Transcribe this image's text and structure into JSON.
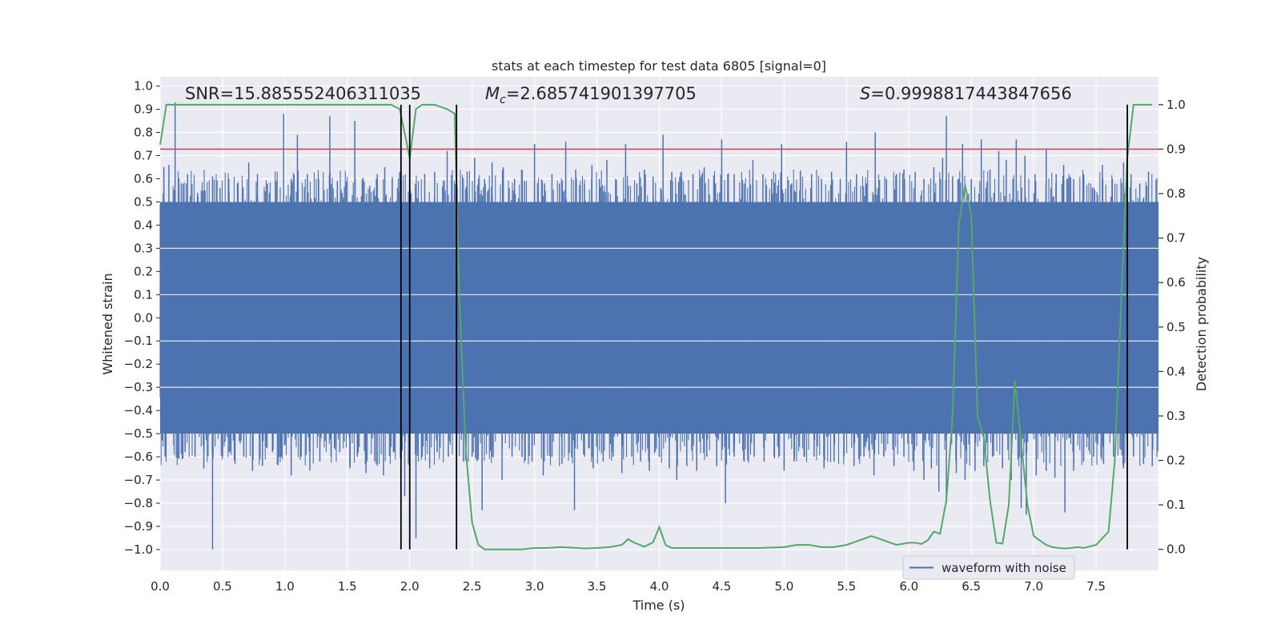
{
  "chart_data": {
    "type": "line",
    "title": "stats at each timestep for test data 6805 [signal=0]",
    "xlabel": "Time (s)",
    "ylabel_left": "Whitened strain",
    "ylabel_right": "Detection probability",
    "xlim": [
      0.0,
      8.0
    ],
    "ylim_left": [
      -1.09,
      1.04
    ],
    "ylim_right": [
      -0.0473,
      1.0627
    ],
    "x_ticks": [
      "0.0",
      "0.5",
      "1.0",
      "1.5",
      "2.0",
      "2.5",
      "3.0",
      "3.5",
      "4.0",
      "4.5",
      "5.0",
      "5.5",
      "6.0",
      "6.5",
      "7.0",
      "7.5"
    ],
    "y_ticks_left": [
      "1.0",
      "0.9",
      "0.8",
      "0.7",
      "0.6",
      "0.5",
      "0.4",
      "0.3",
      "0.2",
      "0.1",
      "0.0",
      "−0.1",
      "−0.2",
      "−0.3",
      "−0.4",
      "−0.5",
      "−0.6",
      "−0.7",
      "−0.8",
      "−0.9",
      "−1.0"
    ],
    "y_ticks_right": [
      "1.0",
      "0.9",
      "0.8",
      "0.7",
      "0.6",
      "0.5",
      "0.4",
      "0.3",
      "0.2",
      "0.1",
      "0.0"
    ],
    "grid": true,
    "annotations": {
      "snr": "SNR=15.885552406311035",
      "mc_symbol": "M",
      "mc_sub": "c",
      "mc_value": "=2.685741901397705",
      "s_symbol": "S",
      "s_value": "=0.9998817443847656"
    },
    "legend": {
      "label": "waveform with noise",
      "location": "lower-right"
    },
    "threshold_right": 0.9,
    "vertical_lines_x": [
      1.93,
      2.0,
      2.375,
      7.75
    ],
    "series": [
      {
        "name": "waveform with noise",
        "axis": "left",
        "color": "#4c72b0",
        "band": [
          -0.5,
          0.5
        ],
        "spikes_up": [
          [
            0.03,
            0.65
          ],
          [
            0.07,
            0.66
          ],
          [
            0.12,
            0.93
          ],
          [
            0.17,
            0.58
          ],
          [
            0.22,
            0.62
          ],
          [
            0.3,
            0.54
          ],
          [
            0.36,
            0.55
          ],
          [
            0.42,
            0.61
          ],
          [
            0.48,
            0.56
          ],
          [
            0.55,
            0.6
          ],
          [
            0.62,
            0.58
          ],
          [
            0.71,
            0.67
          ],
          [
            0.78,
            0.62
          ],
          [
            0.86,
            0.58
          ],
          [
            0.93,
            0.59
          ],
          [
            0.99,
            0.88
          ],
          [
            1.05,
            0.6
          ],
          [
            1.1,
            0.79
          ],
          [
            1.18,
            0.62
          ],
          [
            1.27,
            0.6
          ],
          [
            1.36,
            0.87
          ],
          [
            1.42,
            0.59
          ],
          [
            1.47,
            0.52
          ],
          [
            1.56,
            0.85
          ],
          [
            1.62,
            0.6
          ],
          [
            1.68,
            0.57
          ],
          [
            1.74,
            0.62
          ],
          [
            1.8,
            0.65
          ],
          [
            1.86,
            0.6
          ],
          [
            1.92,
            0.63
          ],
          [
            2.05,
            0.56
          ],
          [
            2.12,
            0.62
          ],
          [
            2.2,
            0.63
          ],
          [
            2.3,
            0.72
          ],
          [
            2.46,
            0.63
          ],
          [
            2.52,
            0.69
          ],
          [
            2.6,
            0.6
          ],
          [
            2.66,
            0.67
          ],
          [
            2.75,
            0.65
          ],
          [
            2.84,
            0.6
          ],
          [
            2.92,
            0.59
          ],
          [
            3.0,
            0.75
          ],
          [
            3.08,
            0.58
          ],
          [
            3.14,
            0.62
          ],
          [
            3.2,
            0.58
          ],
          [
            3.25,
            0.76
          ],
          [
            3.33,
            0.64
          ],
          [
            3.4,
            0.58
          ],
          [
            3.46,
            0.66
          ],
          [
            3.52,
            0.6
          ],
          [
            3.58,
            0.68
          ],
          [
            3.65,
            0.6
          ],
          [
            3.73,
            0.75
          ],
          [
            3.82,
            0.58
          ],
          [
            3.88,
            0.64
          ],
          [
            3.95,
            0.61
          ],
          [
            4.03,
            0.79
          ],
          [
            4.1,
            0.63
          ],
          [
            4.18,
            0.6
          ],
          [
            4.27,
            0.62
          ],
          [
            4.36,
            0.65
          ],
          [
            4.45,
            0.58
          ],
          [
            4.5,
            0.77
          ],
          [
            4.6,
            0.62
          ],
          [
            4.68,
            0.58
          ],
          [
            4.75,
            0.68
          ],
          [
            4.83,
            0.62
          ],
          [
            4.9,
            0.6
          ],
          [
            4.98,
            0.75
          ],
          [
            5.06,
            0.58
          ],
          [
            5.13,
            0.63
          ],
          [
            5.22,
            0.62
          ],
          [
            5.3,
            0.6
          ],
          [
            5.38,
            0.63
          ],
          [
            5.45,
            0.6
          ],
          [
            5.5,
            0.76
          ],
          [
            5.58,
            0.62
          ],
          [
            5.66,
            0.58
          ],
          [
            5.73,
            0.8
          ],
          [
            5.82,
            0.6
          ],
          [
            5.9,
            0.62
          ],
          [
            5.96,
            0.64
          ],
          [
            6.05,
            0.63
          ],
          [
            6.12,
            0.6
          ],
          [
            6.2,
            0.65
          ],
          [
            6.27,
            0.69
          ],
          [
            6.3,
            0.87
          ],
          [
            6.35,
            0.61
          ],
          [
            6.43,
            0.75
          ],
          [
            6.5,
            0.6
          ],
          [
            6.58,
            0.77
          ],
          [
            6.65,
            0.64
          ],
          [
            6.72,
            0.72
          ],
          [
            6.78,
            0.68
          ],
          [
            6.86,
            0.77
          ],
          [
            6.93,
            0.7
          ],
          [
            7.01,
            0.62
          ],
          [
            7.1,
            0.73
          ],
          [
            7.18,
            0.62
          ],
          [
            7.24,
            0.66
          ],
          [
            7.32,
            0.6
          ],
          [
            7.4,
            0.62
          ],
          [
            7.47,
            0.56
          ],
          [
            7.55,
            0.66
          ],
          [
            7.63,
            0.6
          ],
          [
            7.72,
            0.67
          ],
          [
            7.78,
            0.62
          ],
          [
            7.85,
            0.58
          ],
          [
            7.92,
            0.63
          ]
        ],
        "spikes_down": [
          [
            0.04,
            -0.6
          ],
          [
            0.11,
            -0.55
          ],
          [
            0.2,
            -0.58
          ],
          [
            0.28,
            -0.6
          ],
          [
            0.35,
            -0.65
          ],
          [
            0.42,
            -1.0
          ],
          [
            0.5,
            -0.6
          ],
          [
            0.6,
            -0.63
          ],
          [
            0.67,
            -0.6
          ],
          [
            0.74,
            -0.66
          ],
          [
            0.82,
            -0.64
          ],
          [
            0.9,
            -0.58
          ],
          [
            0.97,
            -0.6
          ],
          [
            1.05,
            -0.68
          ],
          [
            1.13,
            -0.6
          ],
          [
            1.2,
            -0.66
          ],
          [
            1.28,
            -0.62
          ],
          [
            1.37,
            -0.6
          ],
          [
            1.44,
            -0.58
          ],
          [
            1.52,
            -0.65
          ],
          [
            1.58,
            -0.6
          ],
          [
            1.65,
            -0.67
          ],
          [
            1.72,
            -0.62
          ],
          [
            1.79,
            -0.68
          ],
          [
            1.87,
            -0.58
          ],
          [
            1.96,
            -0.77
          ],
          [
            2.05,
            -0.95
          ],
          [
            2.1,
            -0.6
          ],
          [
            2.16,
            -0.65
          ],
          [
            2.22,
            -0.58
          ],
          [
            2.31,
            -0.6
          ],
          [
            2.43,
            -0.62
          ],
          [
            2.5,
            -0.6
          ],
          [
            2.58,
            -0.83
          ],
          [
            2.66,
            -0.6
          ],
          [
            2.74,
            -0.7
          ],
          [
            2.82,
            -0.6
          ],
          [
            2.9,
            -0.6
          ],
          [
            2.98,
            -0.62
          ],
          [
            3.07,
            -0.68
          ],
          [
            3.14,
            -0.6
          ],
          [
            3.22,
            -0.63
          ],
          [
            3.32,
            -0.83
          ],
          [
            3.4,
            -0.6
          ],
          [
            3.47,
            -0.65
          ],
          [
            3.55,
            -0.62
          ],
          [
            3.63,
            -0.6
          ],
          [
            3.7,
            -0.67
          ],
          [
            3.78,
            -0.6
          ],
          [
            3.85,
            -0.62
          ],
          [
            3.92,
            -0.66
          ],
          [
            4.0,
            -0.6
          ],
          [
            4.08,
            -0.65
          ],
          [
            4.14,
            -0.7
          ],
          [
            4.22,
            -0.64
          ],
          [
            4.3,
            -0.66
          ],
          [
            4.38,
            -0.6
          ],
          [
            4.46,
            -0.64
          ],
          [
            4.53,
            -0.8
          ],
          [
            4.6,
            -0.6
          ],
          [
            4.68,
            -0.62
          ],
          [
            4.76,
            -0.6
          ],
          [
            4.84,
            -0.62
          ],
          [
            4.92,
            -0.6
          ],
          [
            5.0,
            -0.66
          ],
          [
            5.08,
            -0.62
          ],
          [
            5.16,
            -0.6
          ],
          [
            5.24,
            -0.6
          ],
          [
            5.32,
            -0.65
          ],
          [
            5.4,
            -0.62
          ],
          [
            5.48,
            -0.6
          ],
          [
            5.56,
            -0.64
          ],
          [
            5.64,
            -0.6
          ],
          [
            5.72,
            -0.68
          ],
          [
            5.8,
            -0.6
          ],
          [
            5.88,
            -0.64
          ],
          [
            5.96,
            -0.6
          ],
          [
            6.04,
            -0.66
          ],
          [
            6.12,
            -0.7
          ],
          [
            6.18,
            -0.65
          ],
          [
            6.24,
            -0.75
          ],
          [
            6.3,
            -0.8
          ],
          [
            6.38,
            -0.67
          ],
          [
            6.45,
            -0.7
          ],
          [
            6.53,
            -0.66
          ],
          [
            6.6,
            -0.64
          ],
          [
            6.67,
            -0.6
          ],
          [
            6.75,
            -0.65
          ],
          [
            6.82,
            -0.7
          ],
          [
            6.9,
            -0.82
          ],
          [
            6.94,
            -0.85
          ],
          [
            7.02,
            -0.68
          ],
          [
            7.1,
            -0.66
          ],
          [
            7.17,
            -0.69
          ],
          [
            7.25,
            -0.84
          ],
          [
            7.32,
            -0.66
          ],
          [
            7.4,
            -0.62
          ],
          [
            7.48,
            -0.6
          ],
          [
            7.56,
            -0.63
          ],
          [
            7.64,
            -0.6
          ],
          [
            7.72,
            -0.65
          ],
          [
            7.8,
            -0.6
          ],
          [
            7.88,
            -0.63
          ],
          [
            7.95,
            -0.64
          ]
        ]
      },
      {
        "name": "detection probability",
        "axis": "right",
        "color": "#55a868",
        "x": [
          0.0,
          0.05,
          0.1,
          0.2,
          0.4,
          0.6,
          0.8,
          1.0,
          1.2,
          1.4,
          1.6,
          1.75,
          1.85,
          1.92,
          2.0,
          2.05,
          2.1,
          2.2,
          2.3,
          2.36,
          2.4,
          2.45,
          2.5,
          2.55,
          2.6,
          2.7,
          2.8,
          2.9,
          3.0,
          3.1,
          3.2,
          3.3,
          3.4,
          3.5,
          3.6,
          3.7,
          3.75,
          3.8,
          3.88,
          3.95,
          4.0,
          4.05,
          4.1,
          4.2,
          4.4,
          4.6,
          4.8,
          5.0,
          5.1,
          5.2,
          5.3,
          5.4,
          5.5,
          5.6,
          5.7,
          5.8,
          5.9,
          6.0,
          6.05,
          6.1,
          6.15,
          6.2,
          6.25,
          6.3,
          6.35,
          6.4,
          6.45,
          6.5,
          6.55,
          6.6,
          6.65,
          6.7,
          6.75,
          6.8,
          6.85,
          6.9,
          6.95,
          7.0,
          7.05,
          7.1,
          7.15,
          7.2,
          7.25,
          7.3,
          7.35,
          7.4,
          7.5,
          7.6,
          7.65,
          7.7,
          7.75,
          7.8,
          7.85,
          7.9,
          7.95
        ],
        "y": [
          0.91,
          1.0,
          1.0,
          1.0,
          1.0,
          1.0,
          1.0,
          1.0,
          1.0,
          1.0,
          1.0,
          1.0,
          1.0,
          0.99,
          0.88,
          0.99,
          1.0,
          1.0,
          0.99,
          0.98,
          0.55,
          0.22,
          0.06,
          0.01,
          0.0,
          0.0,
          0.0,
          0.0,
          0.003,
          0.003,
          0.005,
          0.004,
          0.002,
          0.003,
          0.005,
          0.01,
          0.023,
          0.015,
          0.006,
          0.016,
          0.05,
          0.01,
          0.003,
          0.003,
          0.003,
          0.003,
          0.003,
          0.005,
          0.01,
          0.01,
          0.005,
          0.005,
          0.01,
          0.02,
          0.03,
          0.02,
          0.01,
          0.015,
          0.015,
          0.012,
          0.02,
          0.04,
          0.035,
          0.11,
          0.3,
          0.73,
          0.82,
          0.75,
          0.3,
          0.25,
          0.11,
          0.015,
          0.013,
          0.1,
          0.38,
          0.24,
          0.1,
          0.03,
          0.02,
          0.01,
          0.005,
          0.003,
          0.002,
          0.003,
          0.005,
          0.003,
          0.01,
          0.04,
          0.2,
          0.55,
          0.88,
          1.0,
          1.0,
          1.0,
          1.0
        ]
      }
    ]
  }
}
